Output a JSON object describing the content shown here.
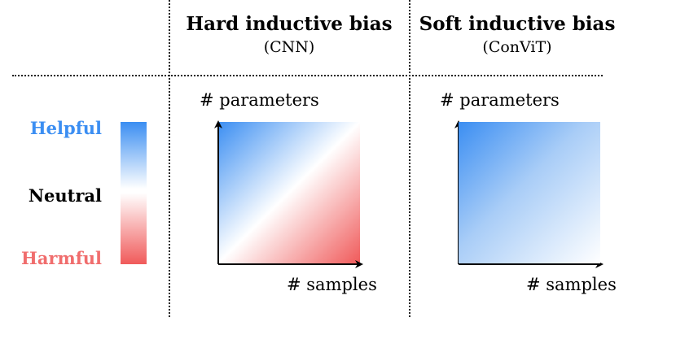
{
  "columns": {
    "hard": {
      "title": "Hard inductive bias",
      "subtitle": "(CNN)"
    },
    "soft": {
      "title": "Soft inductive bias",
      "subtitle": "(ConViT)"
    }
  },
  "legend": {
    "helpful": "Helpful",
    "neutral": "Neutral",
    "harmful": "Harmful"
  },
  "axes": {
    "y_label": "# parameters",
    "x_label": "# samples"
  },
  "colors": {
    "helpful": "#3b8ef2",
    "neutral": "#ffffff",
    "harmful": "#f05a5a",
    "helpful_text": "#3b8ef2",
    "neutral_text": "#000000",
    "harmful_text": "#f06d6d"
  }
}
